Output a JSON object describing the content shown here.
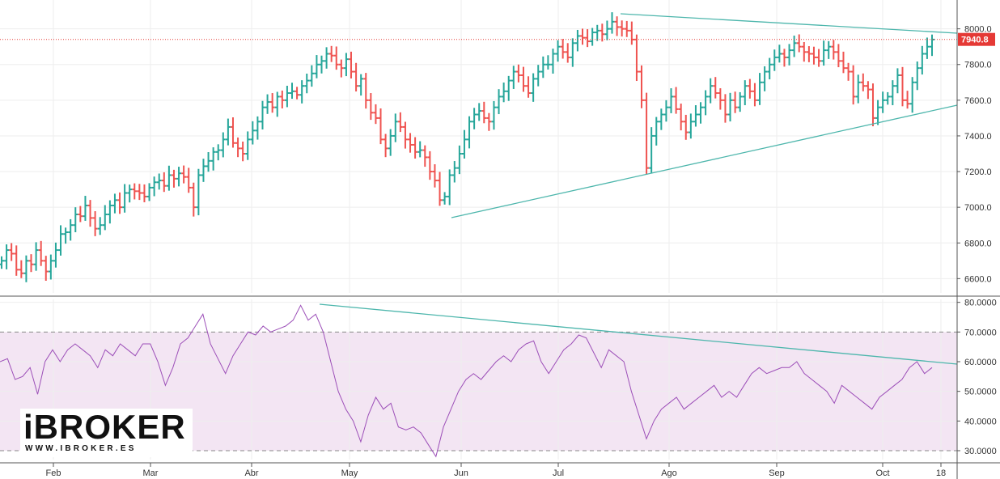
{
  "chart_data": [
    {
      "type": "ohlc",
      "price_axis": {
        "ticks": [
          "8000.0",
          "7800.0",
          "7600.0",
          "7400.0",
          "7200.0",
          "7000.0",
          "6800.0",
          "6600.0"
        ],
        "ylim": [
          6520,
          8080
        ]
      },
      "last_price_label": "7940.8",
      "x_axis": {
        "tick_labels": [
          "Feb",
          "Mar",
          "Abr",
          "May",
          "Jun",
          "Jul",
          "Ago",
          "Sep",
          "Oct",
          "18"
        ]
      },
      "grid": true,
      "series": [
        {
          "close": [
            6700,
            6760,
            6740,
            6650,
            6630,
            6700,
            6680,
            6760,
            6700,
            6640,
            6700,
            6760,
            6850,
            6860,
            6900,
            6960,
            6950,
            7010,
            6940,
            6880,
            6900,
            6960,
            7010,
            7040,
            7000,
            7080,
            7100,
            7090,
            7080,
            7060,
            7110,
            7140,
            7150,
            7120,
            7180,
            7160,
            7190,
            7170,
            7110,
            7000,
            7180,
            7230,
            7260,
            7310,
            7320,
            7380,
            7450,
            7360,
            7330,
            7300,
            7380,
            7430,
            7480,
            7560,
            7590,
            7560,
            7620,
            7600,
            7640,
            7650,
            7630,
            7680,
            7710,
            7750,
            7800,
            7820,
            7860,
            7850,
            7800,
            7780,
            7830,
            7760,
            7680,
            7720,
            7600,
            7530,
            7500,
            7380,
            7330,
            7400,
            7480,
            7450,
            7380,
            7350,
            7310,
            7320,
            7280,
            7200,
            7150,
            7040,
            7060,
            7180,
            7220,
            7300,
            7380,
            7480,
            7520,
            7540,
            7500,
            7480,
            7560,
            7620,
            7650,
            7710,
            7760,
            7740,
            7680,
            7640,
            7720,
            7760,
            7800,
            7800,
            7860,
            7900,
            7870,
            7840,
            7920,
            7960,
            7950,
            7930,
            7980,
            7990,
            7970,
            8000,
            8040,
            8010,
            8000,
            7990,
            7940,
            7760,
            7600,
            7220,
            7400,
            7480,
            7520,
            7560,
            7620,
            7550,
            7480,
            7420,
            7480,
            7520,
            7560,
            7620,
            7680,
            7640,
            7600,
            7520,
            7600,
            7560,
            7620,
            7680,
            7650,
            7600,
            7700,
            7760,
            7800,
            7840,
            7860,
            7840,
            7880,
            7920,
            7900,
            7870,
            7860,
            7840,
            7820,
            7880,
            7900,
            7870,
            7820,
            7780,
            7760,
            7620,
            7700,
            7680,
            7660,
            7500,
            7560,
            7600,
            7620,
            7680,
            7740,
            7600,
            7580,
            7700,
            7780,
            7860,
            7900,
            7940
          ],
          "name": ""
        },
        {
          "rsi": [
            60,
            61,
            54,
            55,
            58,
            49,
            60,
            64,
            60,
            64,
            66,
            64,
            62,
            58,
            64,
            62,
            66,
            64,
            62,
            66,
            66,
            60,
            52,
            58,
            66,
            68,
            72,
            76,
            66,
            61,
            56,
            62,
            66,
            70,
            69,
            72,
            70,
            71,
            72,
            74,
            79,
            74,
            76,
            70,
            60,
            50,
            44,
            40,
            33,
            42,
            48,
            44,
            46,
            38,
            37,
            38,
            36,
            32,
            28,
            38,
            44,
            50,
            54,
            56,
            54,
            57,
            60,
            62,
            60,
            64,
            66,
            67,
            60,
            56,
            60,
            64,
            66,
            69,
            68,
            63,
            58,
            64,
            62,
            60,
            50,
            42,
            34,
            40,
            44,
            46,
            48,
            44,
            46,
            48,
            50,
            52,
            48,
            50,
            48,
            52,
            56,
            58,
            56,
            57,
            58,
            58,
            60,
            56,
            54,
            52,
            50,
            46,
            52,
            50,
            48,
            46,
            44,
            48,
            50,
            52,
            54,
            58,
            60,
            56,
            58
          ],
          "name": ""
        }
      ],
      "rsi_axis": {
        "ticks": [
          "80.0000",
          "70.0000",
          "60.0000",
          "50.0000",
          "40.0000",
          "30.0000"
        ],
        "ylim": [
          27,
          81
        ]
      }
    }
  ],
  "logo": {
    "main": "iBROKER",
    "sub": "WWW.IBROKER.ES"
  },
  "colors": {
    "up": "#26a69a",
    "down": "#ef5350",
    "rsi": "#9c4fb8",
    "rsi_band": "#f3e5f3",
    "trend": "#4db6ac",
    "last": "#e53935"
  }
}
